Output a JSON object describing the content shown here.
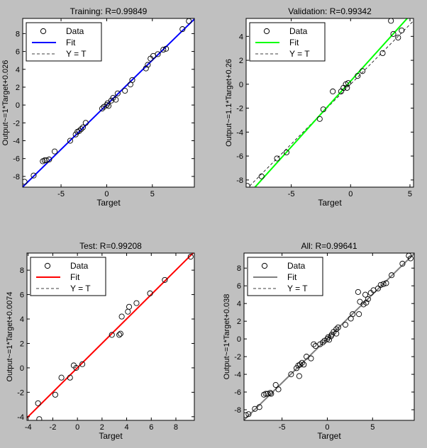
{
  "window": {
    "background": "#c0c0c0"
  },
  "legend_labels": {
    "data": "Data",
    "fit": "Fit",
    "yt": "Y = T"
  },
  "chart_data": [
    {
      "type": "scatter",
      "id": "training",
      "title": "Training: R=0.99849",
      "xlabel": "Target",
      "ylabel": "Output~=1*Target+0.026",
      "xlim": [
        -9.2,
        9.6
      ],
      "ylim": [
        -9.2,
        9.7
      ],
      "xticks": [
        -5,
        0,
        5
      ],
      "yticks": [
        -8,
        -6,
        -4,
        -2,
        0,
        2,
        4,
        6,
        8
      ],
      "fit": {
        "slope": 1.0,
        "intercept": 0.026,
        "color": "#0000ff"
      },
      "points": [
        [
          -9.0,
          -8.6
        ],
        [
          -8.0,
          -7.9
        ],
        [
          -7.0,
          -6.3
        ],
        [
          -6.8,
          -6.2
        ],
        [
          -6.6,
          -6.2
        ],
        [
          -6.3,
          -6.1
        ],
        [
          -5.7,
          -5.2
        ],
        [
          -4.0,
          -4.0
        ],
        [
          -3.4,
          -3.3
        ],
        [
          -3.2,
          -3.0
        ],
        [
          -3.0,
          -2.9
        ],
        [
          -2.8,
          -2.7
        ],
        [
          -2.6,
          -2.5
        ],
        [
          -2.3,
          -2.0
        ],
        [
          -0.5,
          -0.4
        ],
        [
          -0.3,
          -0.2
        ],
        [
          0.0,
          0.0
        ],
        [
          0.1,
          0.2
        ],
        [
          0.2,
          -0.1
        ],
        [
          0.5,
          0.5
        ],
        [
          0.7,
          0.8
        ],
        [
          1.0,
          0.6
        ],
        [
          1.2,
          1.3
        ],
        [
          2.0,
          1.6
        ],
        [
          2.6,
          2.3
        ],
        [
          2.8,
          2.8
        ],
        [
          4.3,
          4.1
        ],
        [
          4.5,
          4.5
        ],
        [
          4.8,
          5.2
        ],
        [
          5.1,
          5.5
        ],
        [
          5.6,
          5.7
        ],
        [
          6.2,
          6.2
        ],
        [
          6.5,
          6.3
        ],
        [
          8.3,
          8.5
        ],
        [
          9.0,
          9.4
        ]
      ]
    },
    {
      "type": "scatter",
      "id": "validation",
      "title": "Validation: R=0.99342",
      "xlabel": "Target",
      "ylabel": "Output~=1.1*Target+0.26",
      "xlim": [
        -8.8,
        5.3
      ],
      "ylim": [
        -8.6,
        5.5
      ],
      "xticks": [
        -5,
        0,
        5
      ],
      "yticks": [
        -8,
        -6,
        -4,
        -2,
        0,
        2,
        4
      ],
      "fit": {
        "slope": 1.1,
        "intercept": 0.26,
        "color": "#00ff00"
      },
      "points": [
        [
          -8.7,
          -8.5
        ],
        [
          -7.5,
          -7.7
        ],
        [
          -6.2,
          -6.2
        ],
        [
          -5.4,
          -5.7
        ],
        [
          -2.6,
          -2.9
        ],
        [
          -2.3,
          -2.1
        ],
        [
          -1.5,
          -0.6
        ],
        [
          -0.8,
          -0.6
        ],
        [
          -0.6,
          -0.3
        ],
        [
          -0.4,
          0.0
        ],
        [
          -0.3,
          -0.3
        ],
        [
          -0.2,
          0.1
        ],
        [
          0.6,
          0.7
        ],
        [
          1.0,
          1.1
        ],
        [
          2.7,
          2.6
        ],
        [
          3.4,
          5.3
        ],
        [
          3.6,
          4.2
        ],
        [
          4.0,
          3.9
        ],
        [
          4.3,
          4.5
        ]
      ]
    },
    {
      "type": "scatter",
      "id": "test",
      "title": "Test: R=0.99208",
      "xlabel": "Target",
      "ylabel": "Output~=1*Target+0.0074",
      "xlim": [
        -4.1,
        9.5
      ],
      "ylim": [
        -4.3,
        9.4
      ],
      "xticks": [
        -4,
        -2,
        0,
        2,
        4,
        6,
        8
      ],
      "yticks": [
        -4,
        -2,
        0,
        2,
        4,
        6,
        8
      ],
      "fit": {
        "slope": 1.0,
        "intercept": 0.0074,
        "color": "#ff0000"
      },
      "points": [
        [
          -3.1,
          -4.2
        ],
        [
          -3.2,
          -2.9
        ],
        [
          -1.8,
          -2.2
        ],
        [
          -1.3,
          -0.8
        ],
        [
          -0.6,
          -0.8
        ],
        [
          -0.3,
          0.2
        ],
        [
          -0.1,
          0.0
        ],
        [
          0.4,
          0.3
        ],
        [
          2.8,
          2.7
        ],
        [
          3.4,
          2.7
        ],
        [
          3.5,
          2.8
        ],
        [
          3.6,
          4.2
        ],
        [
          4.1,
          4.6
        ],
        [
          4.2,
          5.0
        ],
        [
          4.8,
          5.3
        ],
        [
          5.9,
          6.1
        ],
        [
          7.1,
          7.2
        ],
        [
          9.2,
          9.1
        ]
      ]
    },
    {
      "type": "scatter",
      "id": "all",
      "title": "All: R=0.99641",
      "xlabel": "Target",
      "ylabel": "Output~=1*Target+0.038",
      "xlim": [
        -9.2,
        9.6
      ],
      "ylim": [
        -9.2,
        9.7
      ],
      "xticks": [
        -5,
        0,
        5
      ],
      "yticks": [
        -8,
        -6,
        -4,
        -2,
        0,
        2,
        4,
        6,
        8
      ],
      "fit": {
        "slope": 1.0,
        "intercept": 0.038,
        "color": "#808080"
      },
      "points": [
        [
          -9.0,
          -8.6
        ],
        [
          -8.7,
          -8.5
        ],
        [
          -8.0,
          -7.9
        ],
        [
          -7.5,
          -7.7
        ],
        [
          -7.0,
          -6.3
        ],
        [
          -6.8,
          -6.2
        ],
        [
          -6.6,
          -6.2
        ],
        [
          -6.3,
          -6.1
        ],
        [
          -6.2,
          -6.2
        ],
        [
          -5.7,
          -5.2
        ],
        [
          -5.4,
          -5.7
        ],
        [
          -4.0,
          -4.0
        ],
        [
          -3.4,
          -3.3
        ],
        [
          -3.2,
          -3.0
        ],
        [
          -3.1,
          -4.2
        ],
        [
          -3.0,
          -2.9
        ],
        [
          -2.8,
          -2.7
        ],
        [
          -2.6,
          -2.9
        ],
        [
          -2.3,
          -2.0
        ],
        [
          -1.8,
          -2.2
        ],
        [
          -1.5,
          -0.6
        ],
        [
          -1.3,
          -0.8
        ],
        [
          -0.8,
          -0.6
        ],
        [
          -0.5,
          -0.4
        ],
        [
          -0.3,
          -0.2
        ],
        [
          0.0,
          0.0
        ],
        [
          0.1,
          0.2
        ],
        [
          0.2,
          -0.1
        ],
        [
          0.4,
          0.3
        ],
        [
          0.5,
          0.5
        ],
        [
          0.7,
          0.8
        ],
        [
          1.0,
          0.6
        ],
        [
          1.0,
          1.1
        ],
        [
          1.2,
          1.3
        ],
        [
          2.0,
          1.6
        ],
        [
          2.6,
          2.3
        ],
        [
          2.8,
          2.8
        ],
        [
          3.4,
          5.3
        ],
        [
          3.5,
          2.8
        ],
        [
          3.6,
          4.2
        ],
        [
          4.0,
          3.9
        ],
        [
          4.2,
          5.0
        ],
        [
          4.3,
          4.1
        ],
        [
          4.5,
          4.5
        ],
        [
          4.8,
          5.2
        ],
        [
          5.1,
          5.5
        ],
        [
          5.6,
          5.7
        ],
        [
          5.9,
          6.1
        ],
        [
          6.2,
          6.2
        ],
        [
          6.5,
          6.3
        ],
        [
          7.1,
          7.2
        ],
        [
          8.3,
          8.5
        ],
        [
          9.0,
          9.4
        ],
        [
          9.2,
          9.1
        ]
      ]
    }
  ]
}
